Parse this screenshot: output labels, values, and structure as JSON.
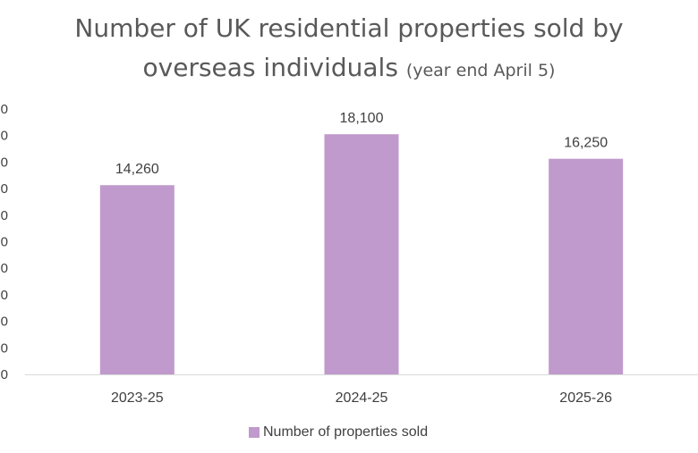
{
  "title": {
    "main_line1": "Number of UK residential properties sold by",
    "main_line2": "overseas individuals",
    "sub": "(year end April 5)"
  },
  "colors": {
    "bar": "#C09ACC",
    "axis": "#D9D9D9",
    "text": "#595959",
    "label": "#404040"
  },
  "chart_data": {
    "type": "bar",
    "title": "Number of UK residential properties sold by overseas individuals (year end April 5)",
    "categories": [
      "2023-25",
      "2024-25",
      "2025-26"
    ],
    "series": [
      {
        "name": "Number of properties sold",
        "values": [
          14260,
          18100,
          16250
        ],
        "data_labels": [
          "14,260",
          "18,100",
          "16,250"
        ]
      }
    ],
    "y_tick_labels": [
      "0",
      "0",
      "0",
      "0",
      "0",
      "0",
      "0",
      "0",
      "0",
      "0",
      "0"
    ],
    "ylim": [
      0,
      20000
    ],
    "grid": false,
    "legend": "bottom"
  }
}
